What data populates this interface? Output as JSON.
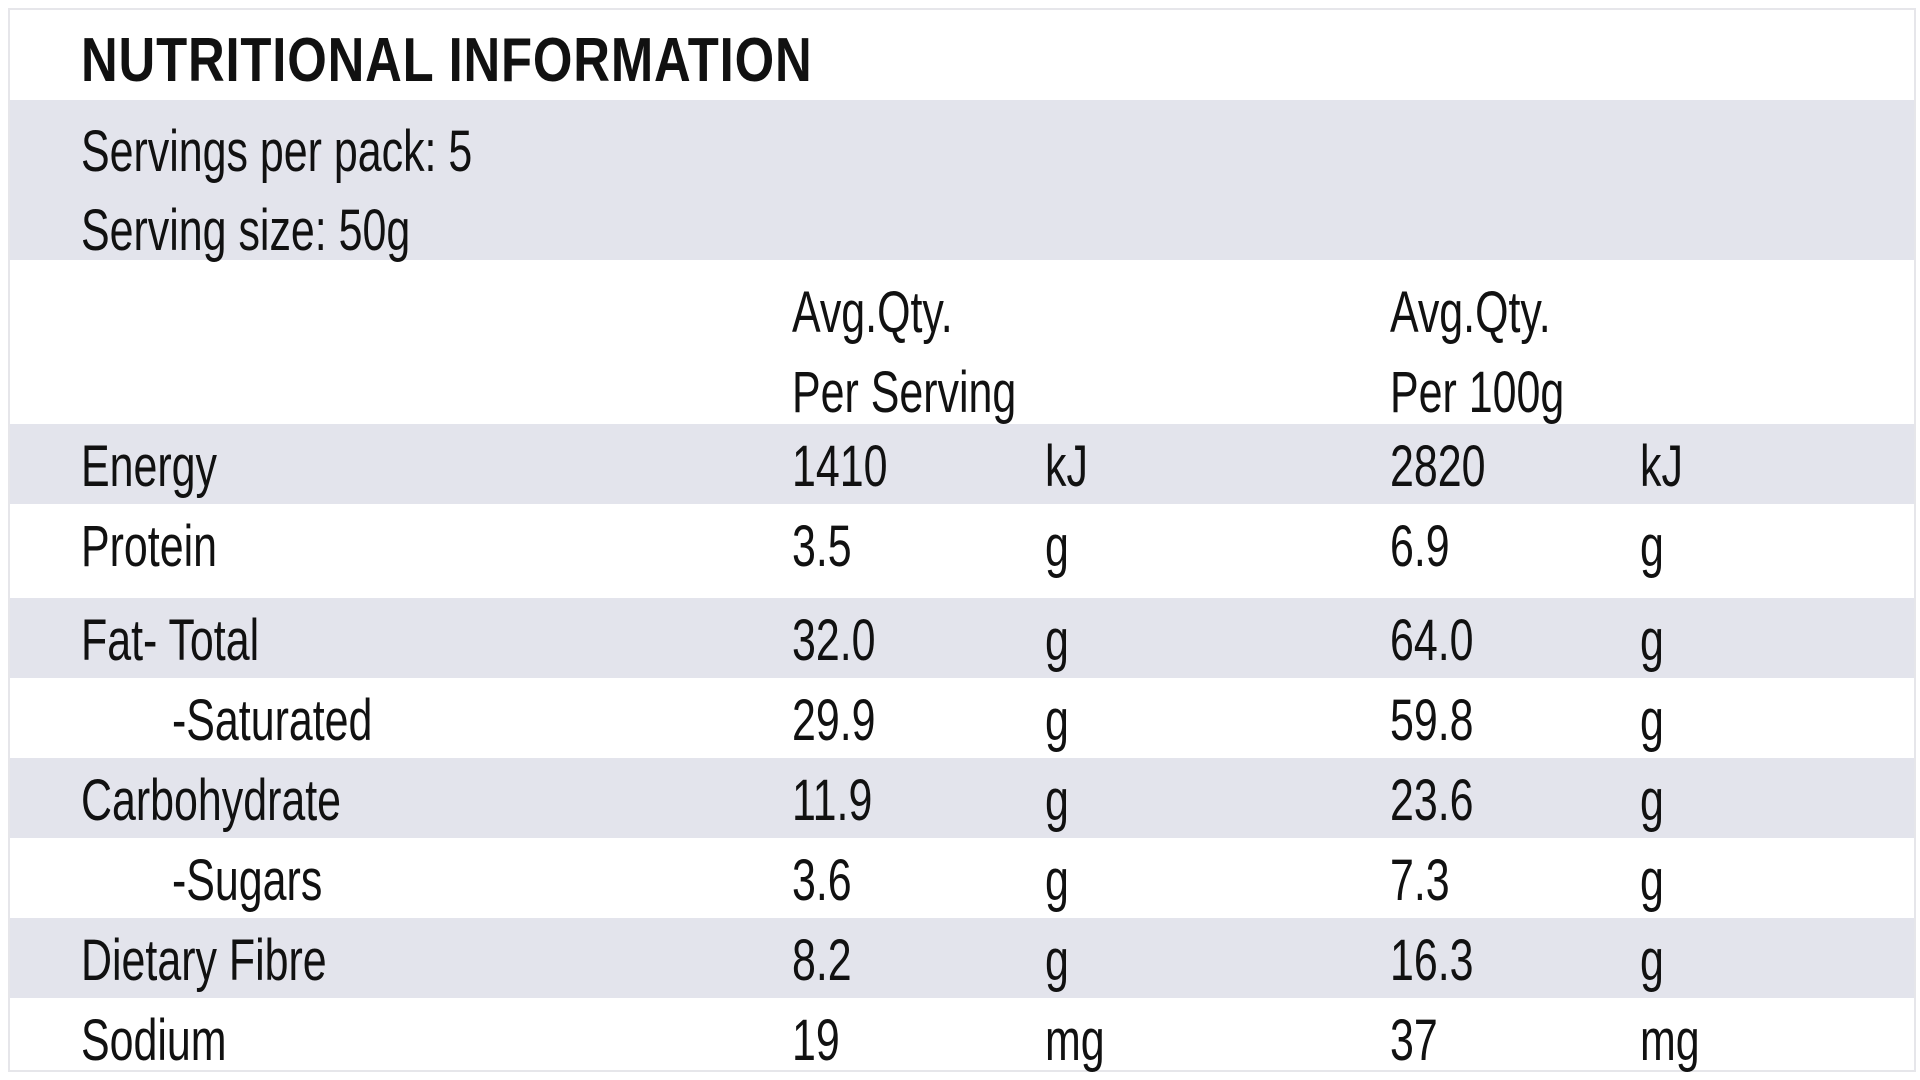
{
  "title": "NUTRITIONAL INFORMATION",
  "servings_per_pack": "Servings per pack: 5",
  "serving_size": "Serving size: 50g",
  "headers": {
    "per_serving_line1": "Avg.Qty.",
    "per_serving_line2": "Per Serving",
    "per_100g_line1": "Avg.Qty.",
    "per_100g_line2": "Per 100g"
  },
  "rows": [
    {
      "label": "Energy",
      "indent": false,
      "per_serving": "1410",
      "per_serving_unit": "kJ",
      "per_100g": "2820",
      "per_100g_unit": "kJ"
    },
    {
      "label": "Protein",
      "indent": false,
      "per_serving": "3.5",
      "per_serving_unit": "g",
      "per_100g": "6.9",
      "per_100g_unit": "g"
    },
    {
      "label": "Fat- Total",
      "indent": false,
      "per_serving": "32.0",
      "per_serving_unit": "g",
      "per_100g": "64.0",
      "per_100g_unit": "g"
    },
    {
      "label": "-Saturated",
      "indent": true,
      "per_serving": "29.9",
      "per_serving_unit": "g",
      "per_100g": "59.8",
      "per_100g_unit": "g"
    },
    {
      "label": "Carbohydrate",
      "indent": false,
      "per_serving": "11.9",
      "per_serving_unit": "g",
      "per_100g": "23.6",
      "per_100g_unit": "g"
    },
    {
      "label": "-Sugars",
      "indent": true,
      "per_serving": "3.6",
      "per_serving_unit": "g",
      "per_100g": "7.3",
      "per_100g_unit": "g"
    },
    {
      "label": "Dietary Fibre",
      "indent": false,
      "per_serving": "8.2",
      "per_serving_unit": "g",
      "per_100g": "16.3",
      "per_100g_unit": "g"
    },
    {
      "label": "Sodium",
      "indent": false,
      "per_serving": "19",
      "per_serving_unit": "mg",
      "per_100g": "37",
      "per_100g_unit": "mg"
    }
  ],
  "colors": {
    "shade": "#e3e4ec",
    "text": "#111111"
  }
}
